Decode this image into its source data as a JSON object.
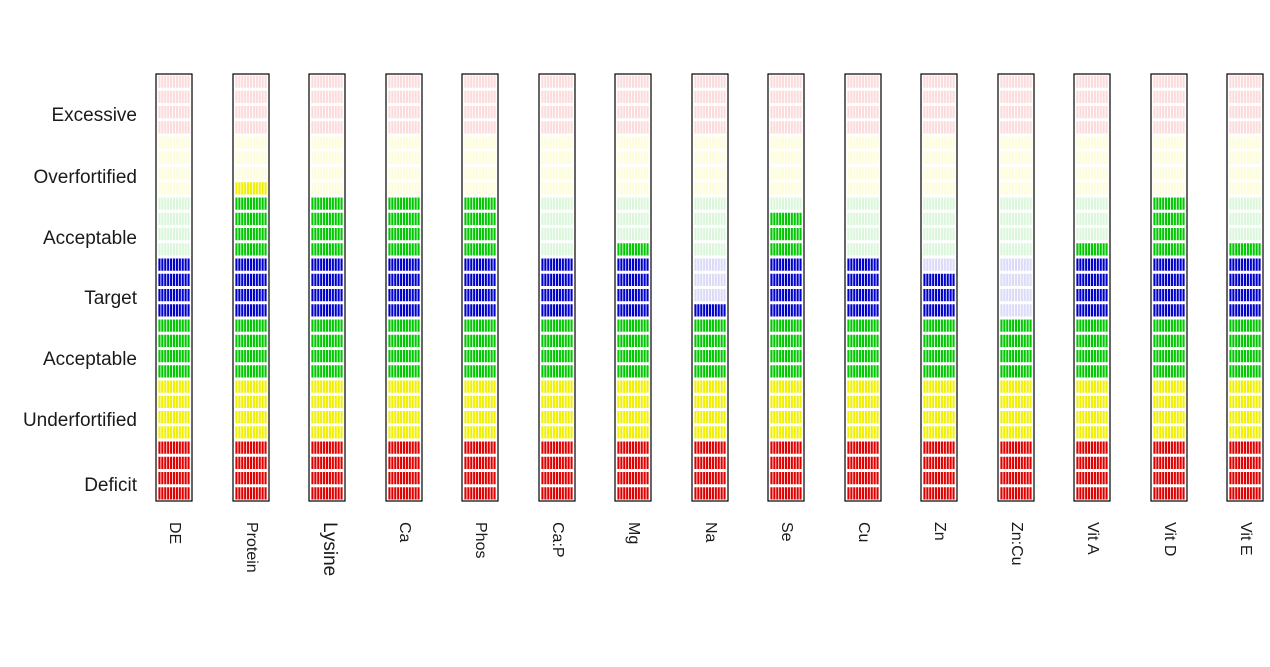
{
  "chart_data": {
    "type": "bar",
    "zones": [
      "Excessive",
      "Overfortified",
      "Acceptable",
      "Target",
      "Acceptable",
      "Underfortified",
      "Deficit"
    ],
    "levels_per_bar": 28,
    "level_bands": [
      {
        "from": 1,
        "to": 4,
        "name": "Deficit",
        "color": "#e00000"
      },
      {
        "from": 5,
        "to": 8,
        "name": "Underfortified",
        "color": "#f0f000"
      },
      {
        "from": 9,
        "to": 12,
        "name": "Acceptable",
        "color": "#00c800"
      },
      {
        "from": 13,
        "to": 16,
        "name": "Target",
        "color": "#0000cc"
      },
      {
        "from": 17,
        "to": 20,
        "name": "Acceptable",
        "color": "#00c800"
      },
      {
        "from": 21,
        "to": 24,
        "name": "Overfortified",
        "color": "#f0f000"
      },
      {
        "from": 25,
        "to": 28,
        "name": "Excessive",
        "color": "#e00000"
      }
    ],
    "categories": [
      "DE",
      "Protein",
      "Lysine",
      "Ca",
      "Phos",
      "Ca:P",
      "Mg",
      "Na",
      "Se",
      "Cu",
      "Zn",
      "Zn:Cu",
      "Vit A",
      "Vit D",
      "Vit E"
    ],
    "values": [
      16,
      21,
      20,
      20,
      20,
      16,
      17,
      13,
      19,
      16,
      15,
      12,
      17,
      20,
      17
    ]
  }
}
